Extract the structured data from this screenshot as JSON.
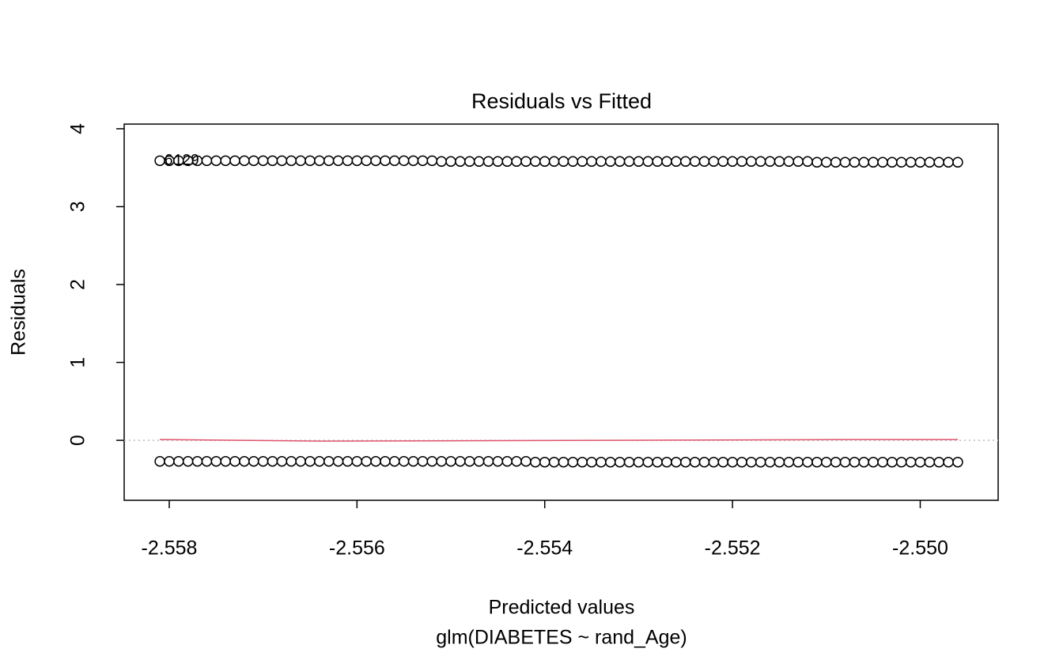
{
  "chart_data": {
    "type": "scatter",
    "title": "Residuals vs Fitted",
    "xlabel": "Predicted values",
    "subtitle": "glm(DIABETES ~ rand_Age)",
    "ylabel": "Residuals",
    "xlim": [
      -2.55848,
      -2.54917
    ],
    "ylim": [
      -0.77,
      4.06
    ],
    "xticks": [
      -2.558,
      -2.556,
      -2.554,
      -2.552,
      {
        "value": -2.55,
        "label": "-2.550"
      }
    ],
    "yticks": [
      0,
      1,
      2,
      3,
      4
    ],
    "reference_line": 0,
    "annotations": [
      "6",
      "129"
    ],
    "x": [
      -2.5581,
      -2.558,
      -2.5579,
      -2.5578,
      -2.5577,
      -2.5576,
      -2.5575,
      -2.5574,
      -2.5573,
      -2.5572,
      -2.5571,
      -2.557,
      -2.5569,
      -2.5568,
      -2.5567,
      -2.5566,
      -2.5565,
      -2.5564,
      -2.5563,
      -2.5562,
      -2.5561,
      -2.556,
      -2.5559,
      -2.5558,
      -2.5557,
      -2.5556,
      -2.5555,
      -2.5554,
      -2.5553,
      -2.5552,
      -2.5551,
      -2.555,
      -2.5549,
      -2.5548,
      -2.5547,
      -2.5546,
      -2.5545,
      -2.5544,
      -2.5543,
      -2.5542,
      -2.5541,
      -2.554,
      -2.5539,
      -2.5538,
      -2.5537,
      -2.5536,
      -2.5535,
      -2.5534,
      -2.5533,
      -2.5532,
      -2.5531,
      -2.553,
      -2.5529,
      -2.5528,
      -2.5527,
      -2.5526,
      -2.5525,
      -2.5524,
      -2.5523,
      -2.5522,
      -2.5521,
      -2.552,
      -2.5519,
      -2.5518,
      -2.5517,
      -2.5516,
      -2.5515,
      -2.5514,
      -2.5513,
      -2.5512,
      -2.5511,
      -2.551,
      -2.5509,
      -2.5508,
      -2.5507,
      -2.5506,
      -2.5505,
      -2.5504,
      -2.5503,
      -2.5502,
      -2.5501,
      -2.55,
      -2.5499,
      -2.5498,
      -2.5497,
      -2.5496
    ],
    "series": [
      {
        "color": "#000000",
        "values": [
          3.59,
          3.59,
          3.59,
          3.59,
          3.59,
          3.59,
          3.59,
          3.59,
          3.59,
          3.59,
          3.59,
          3.59,
          3.59,
          3.59,
          3.59,
          3.59,
          3.59,
          3.59,
          3.59,
          3.59,
          3.59,
          3.59,
          3.59,
          3.59,
          3.59,
          3.59,
          3.59,
          3.59,
          3.59,
          3.59,
          3.58,
          3.58,
          3.58,
          3.58,
          3.58,
          3.58,
          3.58,
          3.58,
          3.58,
          3.58,
          3.58,
          3.58,
          3.58,
          3.58,
          3.58,
          3.58,
          3.58,
          3.58,
          3.58,
          3.58,
          3.58,
          3.58,
          3.58,
          3.58,
          3.58,
          3.58,
          3.58,
          3.58,
          3.58,
          3.58,
          3.58,
          3.58,
          3.58,
          3.58,
          3.58,
          3.58,
          3.58,
          3.58,
          3.58,
          3.58,
          3.57,
          3.57,
          3.57,
          3.57,
          3.57,
          3.57,
          3.57,
          3.57,
          3.57,
          3.57,
          3.57,
          3.57,
          3.57,
          3.57,
          3.57,
          3.57
        ]
      },
      {
        "color": "#000000",
        "values": [
          -0.27,
          -0.27,
          -0.27,
          -0.27,
          -0.27,
          -0.27,
          -0.27,
          -0.27,
          -0.27,
          -0.27,
          -0.27,
          -0.27,
          -0.27,
          -0.27,
          -0.27,
          -0.27,
          -0.27,
          -0.27,
          -0.27,
          -0.27,
          -0.27,
          -0.27,
          -0.27,
          -0.27,
          -0.27,
          -0.27,
          -0.27,
          -0.27,
          -0.27,
          -0.27,
          -0.27,
          -0.27,
          -0.27,
          -0.27,
          -0.27,
          -0.27,
          -0.27,
          -0.27,
          -0.27,
          -0.27,
          -0.28,
          -0.28,
          -0.28,
          -0.28,
          -0.28,
          -0.28,
          -0.28,
          -0.28,
          -0.28,
          -0.28,
          -0.28,
          -0.28,
          -0.28,
          -0.28,
          -0.28,
          -0.28,
          -0.28,
          -0.28,
          -0.28,
          -0.28,
          -0.28,
          -0.28,
          -0.28,
          -0.28,
          -0.28,
          -0.28,
          -0.28,
          -0.28,
          -0.28,
          -0.28,
          -0.28,
          -0.28,
          -0.28,
          -0.28,
          -0.28,
          -0.28,
          -0.28,
          -0.28,
          -0.28,
          -0.28,
          -0.28,
          -0.28,
          -0.28,
          -0.28,
          -0.28,
          -0.28
        ]
      }
    ],
    "smooth": {
      "color": "#DF536B",
      "x": [
        -2.5581,
        -2.5564,
        -2.5533,
        -2.5507,
        -2.5496
      ],
      "values": [
        0.01,
        -0.01,
        0,
        0.01,
        0.01
      ]
    }
  }
}
